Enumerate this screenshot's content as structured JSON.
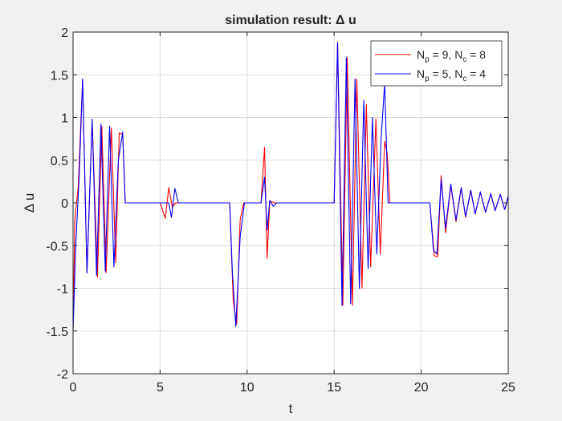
{
  "chart_data": {
    "type": "line",
    "title": "simulation result: Δ u",
    "xlabel": "t",
    "ylabel": "Δ u",
    "xlim": [
      0,
      25
    ],
    "ylim": [
      -2,
      2
    ],
    "xticks": [
      0,
      5,
      10,
      15,
      20,
      25
    ],
    "yticks": [
      -2,
      -1.5,
      -1,
      -0.5,
      0,
      0.5,
      1,
      1.5,
      2
    ],
    "xtick_labels": [
      "0",
      "5",
      "10",
      "15",
      "20",
      "25"
    ],
    "ytick_labels": [
      "-2",
      "-1.5",
      "-1",
      "-0.5",
      "0",
      "0.5",
      "1",
      "1.5",
      "2"
    ],
    "grid": true,
    "legend_position": "top-right",
    "colors": {
      "red": "#ff0000",
      "blue": "#0000ff",
      "axes_bg": "#ffffff",
      "figure_bg": "#f0f0f0",
      "grid": "#dcdcdc",
      "axis": "#262626"
    },
    "series": [
      {
        "name": "N_p = 9, N_c = 8",
        "legend_main": "N",
        "legend_sub1": "p",
        "legend_mid": " = 9, N",
        "legend_sub2": "c",
        "legend_end": " = 8",
        "color": "#ff0000",
        "x": [
          0,
          0.1,
          0.3,
          0.55,
          0.8,
          1.1,
          1.4,
          1.65,
          1.9,
          2.2,
          2.45,
          2.65,
          2.85,
          3.0,
          5.0,
          5.3,
          5.5,
          5.7,
          5.9,
          6.1,
          6.2,
          9.0,
          9.2,
          9.4,
          9.6,
          9.8,
          10.0,
          10.8,
          11.0,
          11.15,
          11.3,
          11.6,
          11.8,
          15.0,
          15.2,
          15.5,
          15.75,
          16.05,
          16.3,
          16.6,
          16.85,
          17.1,
          17.4,
          17.65,
          17.9,
          18.05,
          18.2,
          20.5,
          20.75,
          20.95,
          21.15,
          21.4,
          21.7,
          22.0,
          22.3,
          22.55,
          22.85,
          23.1,
          23.4,
          23.7,
          24.0,
          24.25,
          24.55,
          24.8,
          25
        ],
        "y": [
          -1.52,
          -0.2,
          0.2,
          1.45,
          -0.82,
          0.97,
          -0.87,
          0.9,
          -0.82,
          0.88,
          -0.7,
          0.82,
          0.8,
          0,
          0,
          -0.18,
          0.18,
          -0.05,
          0.0,
          0.0,
          0,
          0,
          -1.15,
          -1.42,
          -0.2,
          0,
          0,
          0,
          0.65,
          -0.65,
          0.02,
          0,
          0,
          0,
          1.88,
          -1.2,
          1.7,
          -1.2,
          1.45,
          -1.0,
          1.15,
          -0.75,
          0.98,
          -0.6,
          0.72,
          0.58,
          0,
          0,
          -0.62,
          -0.63,
          0.32,
          -0.35,
          0.2,
          -0.22,
          0.17,
          -0.17,
          0.14,
          -0.13,
          0.12,
          -0.11,
          0.1,
          -0.09,
          0.1,
          -0.08,
          0.08
        ]
      },
      {
        "name": "N_p = 5, N_c = 4",
        "legend_main": "N",
        "legend_sub1": "p",
        "legend_mid": " = 5, N",
        "legend_sub2": "c",
        "legend_end": " = 4",
        "color": "#0000ff",
        "x": [
          0,
          0.15,
          0.35,
          0.55,
          0.8,
          1.1,
          1.35,
          1.6,
          1.85,
          2.1,
          2.35,
          2.6,
          2.85,
          3.0,
          5.5,
          5.65,
          5.85,
          6.05,
          6.2,
          9.0,
          9.15,
          9.35,
          9.6,
          9.85,
          10.0,
          10.8,
          11.0,
          11.15,
          11.3,
          11.5,
          11.7,
          12.0,
          15.0,
          15.2,
          15.45,
          15.7,
          15.95,
          16.2,
          16.45,
          16.7,
          16.95,
          17.2,
          17.45,
          17.7,
          17.9,
          18.1,
          20.5,
          20.7,
          20.9,
          21.15,
          21.4,
          21.7,
          22.0,
          22.3,
          22.55,
          22.85,
          23.1,
          23.4,
          23.7,
          24.0,
          24.25,
          24.55,
          24.8,
          25
        ],
        "y": [
          -1.5,
          -0.5,
          0.3,
          1.45,
          -0.82,
          0.98,
          -0.85,
          0.92,
          -0.8,
          0.9,
          -0.75,
          0.5,
          0.83,
          0,
          0,
          -0.17,
          0.17,
          0,
          0,
          0,
          -0.8,
          -1.45,
          -0.4,
          0,
          0,
          0,
          0.3,
          -0.32,
          0.03,
          -0.04,
          0,
          0,
          0,
          1.88,
          -1.2,
          1.7,
          -1.18,
          1.45,
          -1.0,
          1.2,
          -0.77,
          1.0,
          -0.6,
          0.75,
          1.4,
          0,
          0,
          -0.55,
          -0.6,
          0.27,
          -0.3,
          0.22,
          -0.2,
          0.18,
          -0.16,
          0.15,
          -0.13,
          0.13,
          -0.11,
          0.11,
          -0.09,
          0.1,
          -0.08,
          0.08
        ]
      }
    ]
  }
}
